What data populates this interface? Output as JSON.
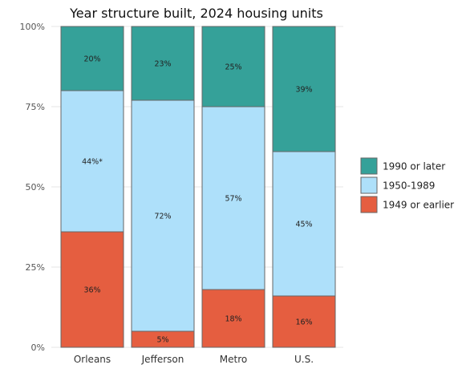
{
  "chart_data": {
    "type": "bar",
    "stacked": true,
    "title": "Year structure built, 2024 housing units",
    "xlabel": "",
    "ylabel": "",
    "categories": [
      "Orleans",
      "Jefferson",
      "Metro",
      "U.S."
    ],
    "ylim": [
      0,
      100
    ],
    "y_ticks": [
      "0%",
      "25%",
      "50%",
      "75%",
      "100%"
    ],
    "y_tick_values": [
      0,
      25,
      50,
      75,
      100
    ],
    "grid": true,
    "legend_position": "right",
    "series": [
      {
        "name": "1949 or earlier",
        "color": "#e55e40",
        "values": [
          36,
          5,
          18,
          16
        ],
        "labels": [
          "36%",
          "5%",
          "18%",
          "16%"
        ]
      },
      {
        "name": "1950-1989",
        "color": "#aee0fa",
        "values": [
          44,
          72,
          57,
          45
        ],
        "labels": [
          "44%*",
          "72%",
          "57%",
          "45%"
        ]
      },
      {
        "name": "1990 or later",
        "color": "#35a199",
        "values": [
          20,
          23,
          25,
          39
        ],
        "labels": [
          "20%",
          "23%",
          "25%",
          "39%"
        ]
      }
    ],
    "legend_order": [
      "1990 or later",
      "1950-1989",
      "1949 or earlier"
    ]
  }
}
